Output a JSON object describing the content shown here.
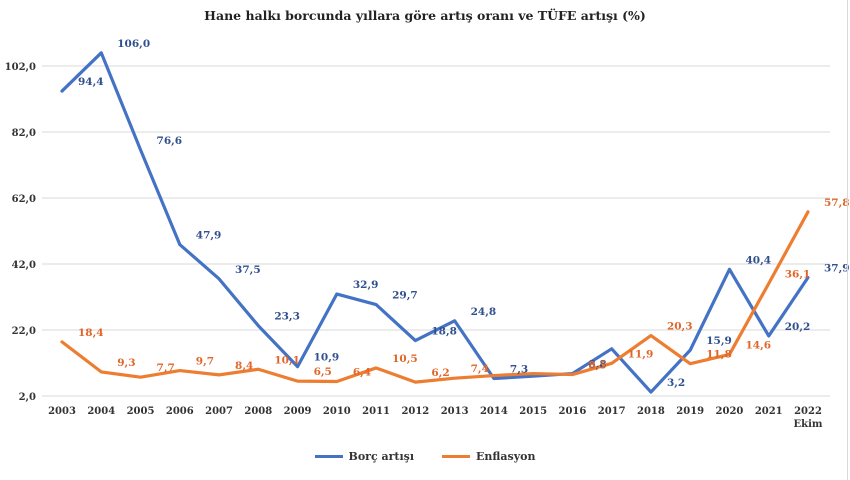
{
  "chart_data": {
    "type": "line",
    "title": "Hane halkı borcunda yıllara göre artış oranı ve TÜFE artışı (%)",
    "categories": [
      "2003",
      "2004",
      "2005",
      "2006",
      "2007",
      "2008",
      "2009",
      "2010",
      "2011",
      "2012",
      "2013",
      "2014",
      "2015",
      "2016",
      "2017",
      "2018",
      "2019",
      "2020",
      "2021",
      "2022"
    ],
    "category_sublabels": {
      "2022": "Ekim"
    },
    "ylim": [
      2,
      102
    ],
    "yticks": [
      "2,0",
      "22,0",
      "42,0",
      "62,0",
      "82,0",
      "102,0"
    ],
    "ytick_values": [
      2,
      22,
      42,
      62,
      82,
      102
    ],
    "grid": "horizontal",
    "legend_position": "bottom",
    "series": [
      {
        "name": "Borç artışı",
        "color": "#4472C4",
        "values": [
          94.4,
          106.0,
          76.6,
          47.9,
          37.5,
          23.3,
          10.9,
          32.9,
          29.7,
          18.8,
          24.8,
          7.3,
          8.0,
          8.8,
          16.3,
          3.2,
          15.9,
          40.4,
          20.2,
          37.9
        ],
        "labels": [
          "94,4",
          "106,0",
          "76,6",
          "47,9",
          "37,5",
          "23,3",
          "10,9",
          "32,9",
          "29,7",
          "18,8",
          "24,8",
          "7,3",
          "",
          "8,8",
          "",
          "3,2",
          "15,9",
          "40,4",
          "20,2",
          "37,9"
        ]
      },
      {
        "name": "Enflasyon",
        "color": "#ED7D31",
        "values": [
          18.4,
          9.3,
          7.7,
          9.7,
          8.4,
          10.1,
          6.5,
          6.4,
          10.5,
          6.2,
          7.4,
          8.2,
          8.8,
          8.5,
          11.9,
          20.3,
          11.8,
          14.6,
          36.1,
          57.8
        ],
        "labels": [
          "18,4",
          "9,3",
          "7,7",
          "9,7",
          "8,4",
          "10,1",
          "6,5",
          "6,4",
          "10,5",
          "6,2",
          "7,4",
          "",
          "",
          "8,5",
          "11,9",
          "20,3",
          "11,8",
          "14,6",
          "36,1",
          "57,8"
        ]
      }
    ]
  }
}
